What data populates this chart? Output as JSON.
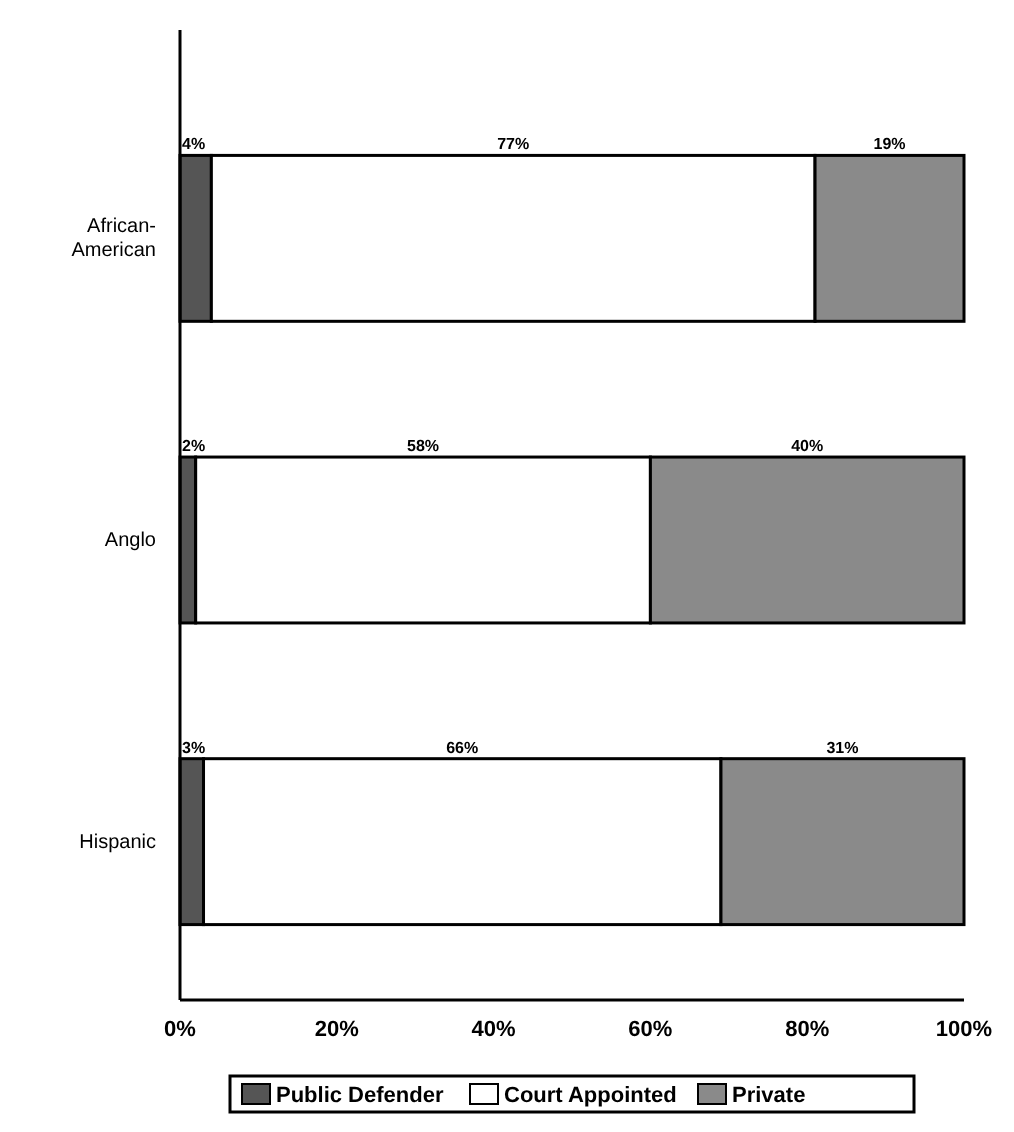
{
  "chart_data": {
    "type": "bar",
    "orientation": "horizontal",
    "stacked": true,
    "categories": [
      "African-American",
      "Anglo",
      "Hispanic"
    ],
    "series": [
      {
        "name": "Public Defender",
        "color": "#555555",
        "values": [
          4,
          2,
          3
        ],
        "value_labels": [
          "4%",
          "2%",
          "3%"
        ]
      },
      {
        "name": "Court Appointed",
        "color": "#ffffff",
        "values": [
          77,
          58,
          66
        ],
        "value_labels": [
          "77%",
          "58%",
          "66%"
        ]
      },
      {
        "name": "Private",
        "color": "#8a8a8a",
        "values": [
          19,
          40,
          31
        ],
        "value_labels": [
          "19%",
          "40%",
          "31%"
        ]
      }
    ],
    "xlim": [
      0,
      100
    ],
    "xticks": [
      {
        "value": 0,
        "label": "0%"
      },
      {
        "value": 20,
        "label": "20%"
      },
      {
        "value": 40,
        "label": "40%"
      },
      {
        "value": 60,
        "label": "60%"
      },
      {
        "value": 80,
        "label": "80%"
      },
      {
        "value": 100,
        "label": "100%"
      }
    ],
    "legend": "bottom",
    "grid": false
  }
}
